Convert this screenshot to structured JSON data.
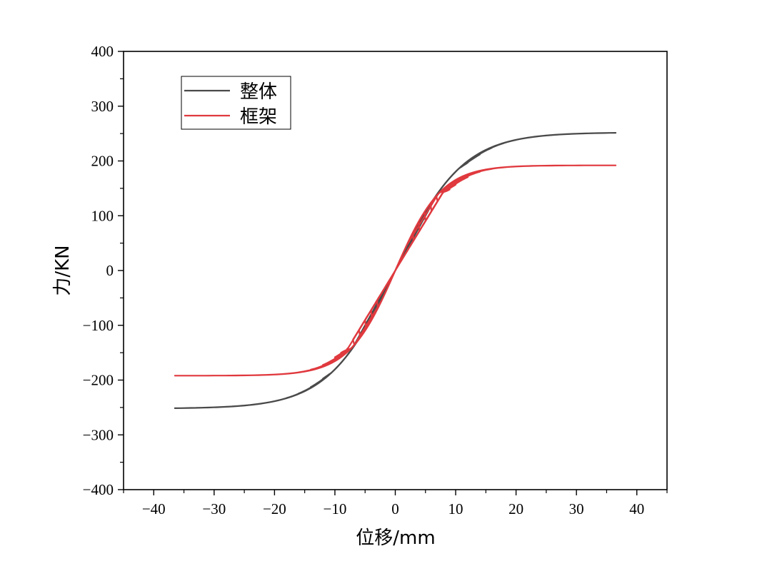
{
  "chart_data": {
    "type": "line",
    "title": "",
    "xlabel": "位移/mm",
    "ylabel": "力/KN",
    "xlim": [
      -45,
      45
    ],
    "ylim": [
      -400,
      400
    ],
    "xticks": [
      -40,
      -30,
      -20,
      -10,
      0,
      10,
      20,
      30,
      40
    ],
    "yticks": [
      -400,
      -300,
      -200,
      -100,
      0,
      100,
      200,
      300,
      400
    ],
    "xtick_labels": [
      "−40",
      "−30",
      "−20",
      "−10",
      "0",
      "10",
      "20",
      "30",
      "40"
    ],
    "ytick_labels": [
      "−400",
      "−300",
      "−200",
      "−100",
      "0",
      "100",
      "200",
      "300",
      "400"
    ],
    "grid": false,
    "legend_position": "top-left",
    "series": [
      {
        "name": "整体",
        "color": "#4a4a4a",
        "model": {
          "k": 20,
          "fy": 170,
          "fmax": 252,
          "rate": 0.09,
          "residual": 0.53,
          "pinch": 0.82,
          "amplitudes": [
            2,
            3,
            4,
            5,
            6,
            7,
            8,
            9,
            10,
            11,
            12,
            14,
            16,
            18,
            20,
            22,
            24,
            27,
            30,
            33,
            36.5
          ]
        },
        "end": [
          0.5,
          190
        ]
      },
      {
        "name": "框架",
        "color": "#e0393e",
        "model": {
          "k": 18,
          "fy": 130,
          "fmax": 192,
          "rate": 0.13,
          "residual": 0.45,
          "pinch": 1.05,
          "amplitudes": [
            3,
            4,
            5,
            6,
            7,
            8,
            9,
            10,
            12,
            14,
            16,
            18,
            20,
            22,
            25,
            28,
            31,
            34,
            36.5
          ]
        },
        "end": [
          0.5,
          160
        ]
      }
    ]
  }
}
